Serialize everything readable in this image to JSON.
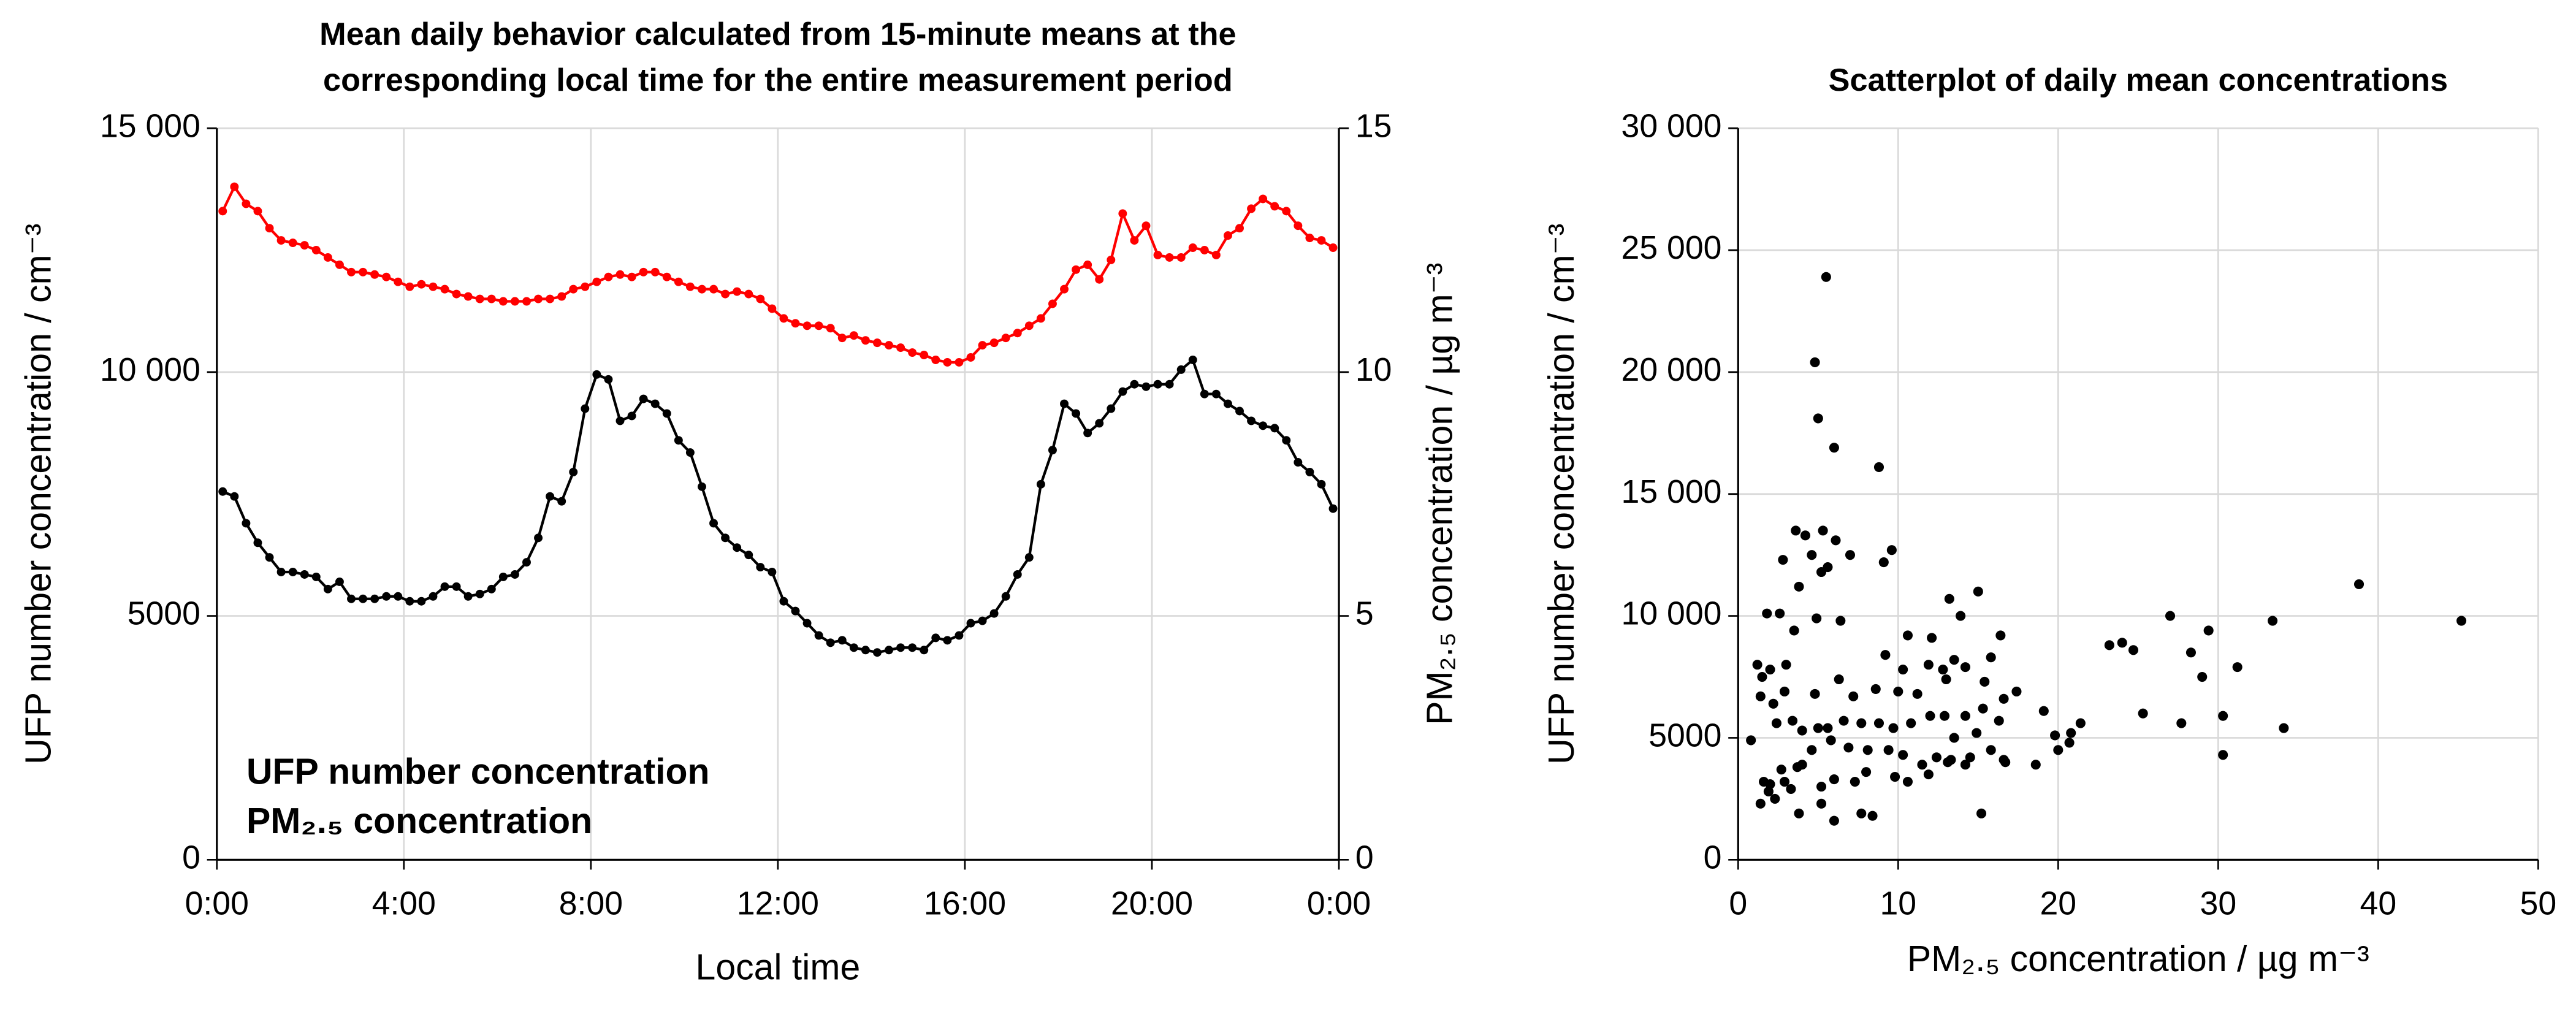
{
  "chart_data": [
    {
      "type": "line",
      "title": [
        "Mean daily behavior calculated from 15-minute means at the",
        "corresponding local time for the entire measurement period"
      ],
      "x_label": "Local time",
      "y_label": "UFP number concentration / cm⁻³",
      "y2_label": "PM₂.₅ concentration / µg m⁻³",
      "xlim": [
        0,
        24
      ],
      "xticks": [
        {
          "value": 0,
          "label": "0:00"
        },
        {
          "value": 4,
          "label": "4:00"
        },
        {
          "value": 8,
          "label": "8:00"
        },
        {
          "value": 12,
          "label": "12:00"
        },
        {
          "value": 16,
          "label": "16:00"
        },
        {
          "value": 20,
          "label": "20:00"
        },
        {
          "value": 24,
          "label": "0:00"
        }
      ],
      "ylim": [
        0,
        15000
      ],
      "yticks": [
        0,
        5000,
        {
          "value": 10000,
          "label": "10 000"
        },
        {
          "value": 15000,
          "label": "15 000"
        }
      ],
      "y2lim": [
        0,
        15
      ],
      "y2ticks": [
        0,
        5,
        10,
        15
      ],
      "grid": true,
      "legend": "lower left",
      "x": [
        0.125,
        0.375,
        0.625,
        0.875,
        1.125,
        1.375,
        1.625,
        1.875,
        2.125,
        2.375,
        2.625,
        2.875,
        3.125,
        3.375,
        3.625,
        3.875,
        4.125,
        4.375,
        4.625,
        4.875,
        5.125,
        5.375,
        5.625,
        5.875,
        6.125,
        6.375,
        6.625,
        6.875,
        7.125,
        7.375,
        7.625,
        7.875,
        8.125,
        8.375,
        8.625,
        8.875,
        9.125,
        9.375,
        9.625,
        9.875,
        10.125,
        10.375,
        10.625,
        10.875,
        11.125,
        11.375,
        11.625,
        11.875,
        12.125,
        12.375,
        12.625,
        12.875,
        13.125,
        13.375,
        13.625,
        13.875,
        14.125,
        14.375,
        14.625,
        14.875,
        15.125,
        15.375,
        15.625,
        15.875,
        16.125,
        16.375,
        16.625,
        16.875,
        17.125,
        17.375,
        17.625,
        17.875,
        18.125,
        18.375,
        18.625,
        18.875,
        19.125,
        19.375,
        19.625,
        19.875,
        20.125,
        20.375,
        20.625,
        20.875,
        21.125,
        21.375,
        21.625,
        21.875,
        22.125,
        22.375,
        22.625,
        22.875,
        23.125,
        23.375,
        23.625,
        23.875
      ],
      "series": [
        {
          "name": "UFP number concentration",
          "color": "#000000",
          "values": [
            7550,
            7450,
            6900,
            6500,
            6200,
            5900,
            5900,
            5850,
            5800,
            5550,
            5700,
            5350,
            5350,
            5350,
            5400,
            5400,
            5300,
            5300,
            5400,
            5600,
            5600,
            5400,
            5450,
            5550,
            5800,
            5850,
            6100,
            6600,
            7450,
            7350,
            7950,
            9250,
            9950,
            9850,
            9000,
            9100,
            9450,
            9350,
            9150,
            8600,
            8350,
            7650,
            6900,
            6600,
            6400,
            6250,
            6000,
            5900,
            5300,
            5100,
            4850,
            4600,
            4450,
            4500,
            4350,
            4300,
            4250,
            4300,
            4350,
            4350,
            4300,
            4550,
            4500,
            4600,
            4850,
            4900,
            5050,
            5400,
            5850,
            6200,
            7700,
            8400,
            9350,
            9150,
            8750,
            8950,
            9250,
            9600,
            9750,
            9700,
            9750,
            9750,
            10050,
            10250,
            9550,
            9550,
            9350,
            9200,
            9000,
            8900,
            8850,
            8600,
            8150,
            7950,
            7700,
            7200
          ]
        },
        {
          "name": "PM₂.₅ concentration",
          "color": "#ff0000",
          "axis": "y2",
          "values": [
            13.3,
            13.8,
            13.45,
            13.3,
            12.95,
            12.7,
            12.65,
            12.6,
            12.5,
            12.35,
            12.2,
            12.05,
            12.05,
            12.0,
            11.95,
            11.85,
            11.75,
            11.8,
            11.75,
            11.7,
            11.6,
            11.55,
            11.5,
            11.5,
            11.45,
            11.45,
            11.45,
            11.5,
            11.5,
            11.55,
            11.7,
            11.75,
            11.85,
            11.95,
            12.0,
            11.95,
            12.05,
            12.05,
            11.95,
            11.85,
            11.75,
            11.7,
            11.7,
            11.6,
            11.65,
            11.6,
            11.5,
            11.3,
            11.1,
            11.0,
            10.95,
            10.95,
            10.9,
            10.7,
            10.75,
            10.65,
            10.6,
            10.55,
            10.5,
            10.4,
            10.35,
            10.25,
            10.2,
            10.2,
            10.3,
            10.55,
            10.6,
            10.7,
            10.8,
            10.95,
            11.1,
            11.4,
            11.7,
            12.1,
            12.2,
            11.9,
            12.3,
            13.25,
            12.7,
            13.0,
            12.4,
            12.35,
            12.35,
            12.55,
            12.5,
            12.4,
            12.8,
            12.95,
            13.35,
            13.55,
            13.4,
            13.3,
            13.0,
            12.75,
            12.7,
            12.55
          ]
        }
      ]
    },
    {
      "type": "scatter",
      "title": [
        "Scatterplot of daily mean concentrations"
      ],
      "x_label": "PM₂.₅ concentration / µg m⁻³",
      "y_label": "UFP number concentration / cm⁻³",
      "xlim": [
        0,
        50
      ],
      "xticks": [
        0,
        10,
        20,
        30,
        40,
        50
      ],
      "ylim": [
        0,
        30000
      ],
      "yticks": [
        0,
        5000,
        {
          "value": 10000,
          "label": "10 000"
        },
        {
          "value": 15000,
          "label": "15 000"
        },
        {
          "value": 20000,
          "label": "20 000"
        },
        {
          "value": 25000,
          "label": "25 000"
        },
        {
          "value": 30000,
          "label": "30 000"
        }
      ],
      "grid": true,
      "color": "#000000",
      "x": [
        5.5,
        4.8,
        5.0,
        6.0,
        8.8,
        3.6,
        5.3,
        4.2,
        6.1,
        2.8,
        4.6,
        5.6,
        7.0,
        9.6,
        9.1,
        5.2,
        3.8,
        1.8,
        4.9,
        6.4,
        2.6,
        13.2,
        15.0,
        13.9,
        12.1,
        16.4,
        10.6,
        3.5,
        3.0,
        1.5,
        1.2,
        2.0,
        9.2,
        11.9,
        13.5,
        14.2,
        15.8,
        10.3,
        12.8,
        13.0,
        17.4,
        15.4,
        16.6,
        6.3,
        4.8,
        7.2,
        8.6,
        10.0,
        11.2,
        2.9,
        2.2,
        3.4,
        1.4,
        2.4,
        5.0,
        5.6,
        4.0,
        6.6,
        7.7,
        8.8,
        9.7,
        10.8,
        12.0,
        12.9,
        14.2,
        15.3,
        16.3,
        13.5,
        14.9,
        15.8,
        16.6,
        13.3,
        14.5,
        12.4,
        11.5,
        10.3,
        9.4,
        8.1,
        6.9,
        5.8,
        4.6,
        3.7,
        2.7,
        1.6,
        0.8,
        2.0,
        2.9,
        3.3,
        4.0,
        5.2,
        6.0,
        7.3,
        8.0,
        9.8,
        10.6,
        11.9,
        13.1,
        14.2,
        15.2,
        1.4,
        1.9,
        2.3,
        3.8,
        5.2,
        6.0,
        7.7,
        8.4,
        16.7,
        18.6,
        19.1,
        19.8,
        20.0,
        20.7,
        20.8,
        21.4,
        23.2,
        24.0,
        24.7,
        25.3,
        27.0,
        27.7,
        28.3,
        29.0,
        29.4,
        30.3,
        30.3,
        31.2,
        33.4,
        34.1,
        38.8,
        45.2
      ],
      "values": [
        23900,
        20400,
        18100,
        16900,
        16100,
        13500,
        13500,
        13300,
        13100,
        12300,
        12500,
        12000,
        12500,
        12700,
        12200,
        11800,
        11200,
        10100,
        9900,
        9800,
        10100,
        10700,
        11000,
        10000,
        9100,
        9200,
        9200,
        9400,
        8000,
        7500,
        8000,
        7800,
        8400,
        8000,
        8200,
        7900,
        8300,
        7800,
        7800,
        7400,
        6900,
        7300,
        6600,
        7400,
        6800,
        6700,
        7000,
        6900,
        6800,
        6900,
        6400,
        5700,
        6700,
        5600,
        5400,
        5400,
        5300,
        5700,
        5600,
        5600,
        5400,
        5600,
        5900,
        5900,
        5900,
        6200,
        5700,
        5000,
        5200,
        4500,
        4100,
        4100,
        4200,
        4200,
        3900,
        4300,
        4500,
        4500,
        4600,
        4900,
        4500,
        3800,
        3700,
        3200,
        4900,
        3100,
        3200,
        2900,
        3900,
        3000,
        3300,
        3200,
        3600,
        3400,
        3200,
        3500,
        4000,
        3900,
        1900,
        2300,
        2800,
        2500,
        1900,
        2300,
        1600,
        1900,
        1800,
        4000,
        3900,
        6100,
        5100,
        4500,
        4800,
        5200,
        5600,
        8800,
        8900,
        8600,
        6000,
        10000,
        5600,
        8500,
        7500,
        9400,
        5900,
        4300,
        7900,
        9800,
        5400,
        11300,
        9800
      ]
    }
  ]
}
